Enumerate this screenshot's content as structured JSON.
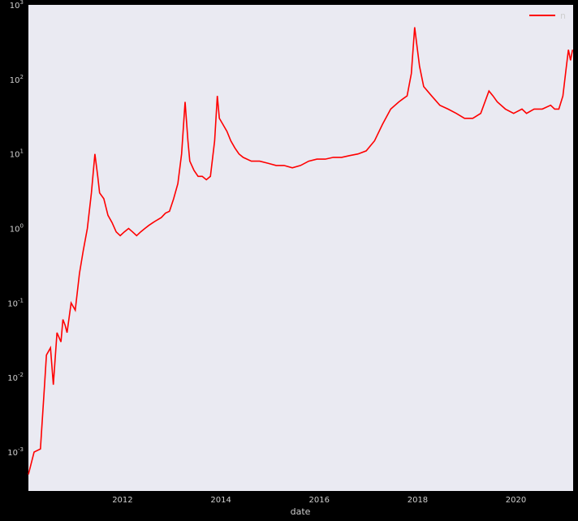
{
  "chart_data": {
    "type": "line",
    "xlabel": "date",
    "ylabel": "",
    "y_scale": "log",
    "ylim": [
      0.0003,
      1000
    ],
    "xlim": [
      "2010-02-01",
      "2021-03-01"
    ],
    "x_ticks": [
      "2012",
      "2014",
      "2016",
      "2018",
      "2020"
    ],
    "y_ticks": [
      {
        "base": "10",
        "exp": "-3"
      },
      {
        "base": "10",
        "exp": "-2"
      },
      {
        "base": "10",
        "exp": "-1"
      },
      {
        "base": "10",
        "exp": "0"
      },
      {
        "base": "10",
        "exp": "1"
      },
      {
        "base": "10",
        "exp": "2"
      },
      {
        "base": "10",
        "exp": "3"
      }
    ],
    "grid": false,
    "legend": "top-right",
    "colors": {
      "background": "#eaeaf2",
      "line": "#ff0000",
      "frame": "#000000",
      "text": "#cfcfcf"
    },
    "series": [
      {
        "name": "n",
        "x": [
          "2010-02-01",
          "2010-03-15",
          "2010-05-01",
          "2010-06-01",
          "2010-06-15",
          "2010-07-15",
          "2010-08-05",
          "2010-09-01",
          "2010-10-01",
          "2010-10-15",
          "2010-11-01",
          "2010-11-15",
          "2010-12-15",
          "2011-01-15",
          "2011-02-15",
          "2011-03-15",
          "2011-04-15",
          "2011-05-15",
          "2011-06-10",
          "2011-07-01",
          "2011-07-15",
          "2011-08-15",
          "2011-09-15",
          "2011-10-15",
          "2011-11-15",
          "2011-12-15",
          "2012-01-15",
          "2012-02-15",
          "2012-03-15",
          "2012-04-15",
          "2012-05-15",
          "2012-06-15",
          "2012-07-15",
          "2012-08-15",
          "2012-09-15",
          "2012-10-15",
          "2012-11-15",
          "2012-12-15",
          "2013-01-15",
          "2013-02-15",
          "2013-03-15",
          "2013-04-10",
          "2013-05-01",
          "2013-05-15",
          "2013-06-15",
          "2013-07-15",
          "2013-08-15",
          "2013-09-15",
          "2013-10-15",
          "2013-11-15",
          "2013-12-05",
          "2013-12-20",
          "2014-01-15",
          "2014-02-15",
          "2014-03-15",
          "2014-04-15",
          "2014-05-15",
          "2014-06-15",
          "2014-08-15",
          "2014-10-15",
          "2014-12-15",
          "2015-02-15",
          "2015-04-15",
          "2015-06-15",
          "2015-08-15",
          "2015-10-15",
          "2015-12-15",
          "2016-02-15",
          "2016-04-15",
          "2016-06-15",
          "2016-08-15",
          "2016-10-15",
          "2016-12-15",
          "2017-02-15",
          "2017-04-15",
          "2017-06-15",
          "2017-08-15",
          "2017-09-15",
          "2017-10-15",
          "2017-11-15",
          "2017-12-10",
          "2017-12-25",
          "2018-01-15",
          "2018-02-15",
          "2018-04-15",
          "2018-06-15",
          "2018-08-15",
          "2018-10-15",
          "2018-12-15",
          "2019-02-15",
          "2019-04-15",
          "2019-06-15",
          "2019-07-15",
          "2019-08-15",
          "2019-10-15",
          "2019-12-15",
          "2020-02-15",
          "2020-03-20",
          "2020-05-15",
          "2020-07-15",
          "2020-09-15",
          "2020-10-15",
          "2020-11-15",
          "2020-12-15",
          "2021-01-10",
          "2021-01-25",
          "2021-02-10",
          "2021-02-25"
        ],
        "values": [
          0.0005,
          0.001,
          0.0011,
          0.008,
          0.02,
          0.025,
          0.008,
          0.04,
          0.03,
          0.06,
          0.05,
          0.04,
          0.1,
          0.08,
          0.25,
          0.5,
          1.0,
          3.0,
          10.0,
          5.0,
          3.0,
          2.5,
          1.5,
          1.2,
          0.9,
          0.8,
          0.9,
          1.0,
          0.9,
          0.8,
          0.9,
          1.0,
          1.1,
          1.2,
          1.3,
          1.4,
          1.6,
          1.7,
          2.5,
          4.0,
          10.0,
          50.0,
          15.0,
          8.0,
          6.0,
          5.0,
          5.0,
          4.5,
          5.0,
          15.0,
          60.0,
          30.0,
          25.0,
          20.0,
          15.0,
          12.0,
          10.0,
          9.0,
          8.0,
          8.0,
          7.5,
          7.0,
          7.0,
          6.5,
          7.0,
          8.0,
          8.5,
          8.5,
          9.0,
          9.0,
          9.5,
          10.0,
          11.0,
          15.0,
          25.0,
          40.0,
          50.0,
          55.0,
          60.0,
          120.0,
          500.0,
          300.0,
          150.0,
          80.0,
          60.0,
          45.0,
          40.0,
          35.0,
          30.0,
          30.0,
          35.0,
          70.0,
          60.0,
          50.0,
          40.0,
          35.0,
          40.0,
          35.0,
          40.0,
          40.0,
          45.0,
          40.0,
          40.0,
          60.0,
          150.0,
          250.0,
          180.0,
          250.0
        ]
      }
    ]
  }
}
